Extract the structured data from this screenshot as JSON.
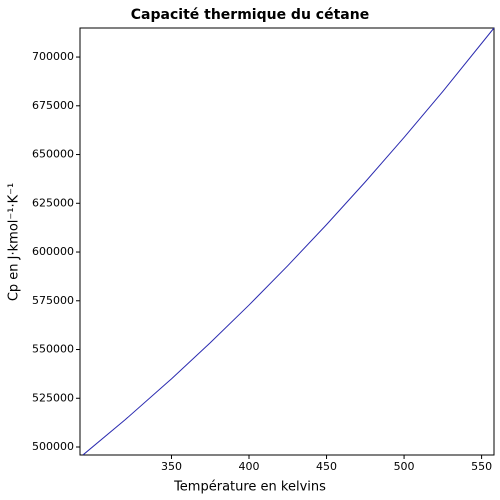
{
  "chart_data": {
    "type": "line",
    "title": "Capacité thermique du cétane",
    "xlabel": "Température en kelvins",
    "ylabel": "Cp en J·kmol⁻¹·K⁻¹",
    "x": [
      293,
      320,
      350,
      375,
      400,
      425,
      450,
      475,
      500,
      525,
      558
    ],
    "series": [
      {
        "color": "#2b2bb0",
        "values": [
          496000,
          513900,
          534960,
          553450,
          572800,
          593000,
          614070,
          635990,
          658760,
          682390,
          714900
        ]
      }
    ],
    "xlim": [
      291,
      558
    ],
    "ylim": [
      495900,
      714900
    ],
    "xticks": [
      350,
      400,
      450,
      500,
      550
    ],
    "yticks": [
      500000,
      525000,
      550000,
      575000,
      600000,
      625000,
      650000,
      675000,
      700000
    ],
    "grid": false
  }
}
